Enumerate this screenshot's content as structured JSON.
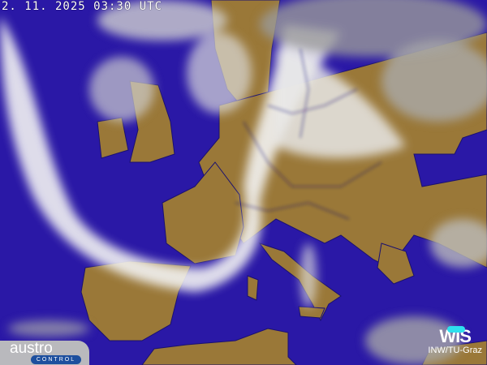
{
  "timestamp": "2. 11. 2025 03:30  UTC",
  "logos": {
    "left": "austro",
    "left_sub": "CONTROL",
    "right": "WIS",
    "right_sub": "INW/TU-Graz"
  },
  "colors": {
    "sea": "#2a18a6",
    "land": "#9a7838",
    "cloud": "#ffffff",
    "border": "#1a1070"
  }
}
